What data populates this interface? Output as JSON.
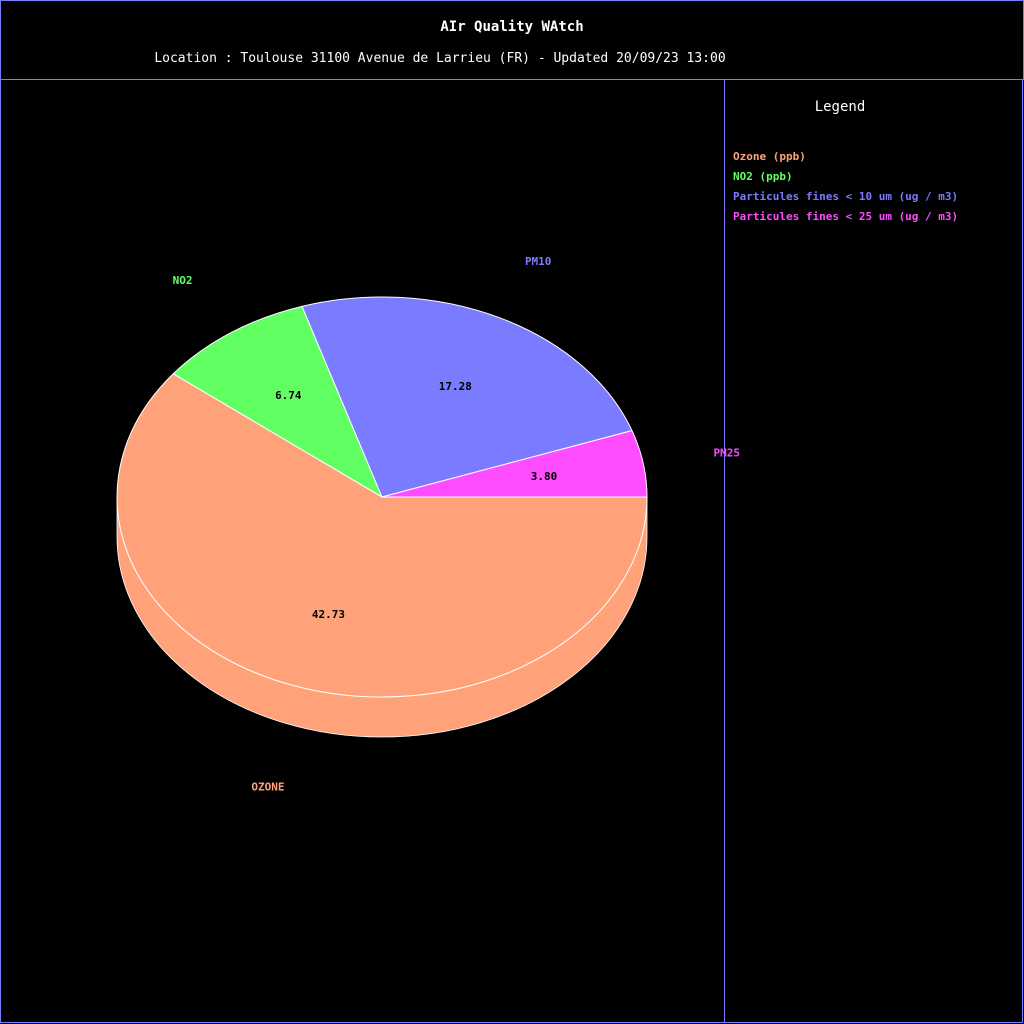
{
  "header": {
    "title": "AIr Quality WAtch",
    "subtitle": "Location : Toulouse 31100 Avenue de Larrieu (FR) - Updated 20/09/23 13:00"
  },
  "legend": {
    "title": "Legend",
    "items": [
      {
        "label": "Ozone (ppb)",
        "color": "#ffa27a"
      },
      {
        "label": "NO2 (ppb)",
        "color": "#62ff62"
      },
      {
        "label": "Particules fines < 10 um (ug / m3)",
        "color": "#7b7bff"
      },
      {
        "label": "Particules fines < 25 um (ug / m3)",
        "color": "#ff4cff"
      }
    ]
  },
  "chart_data": {
    "type": "pie",
    "style": "3d",
    "slices": [
      {
        "name": "OZONE",
        "value": 42.73,
        "value_label": "42.73",
        "color": "#ffa27a"
      },
      {
        "name": "NO2",
        "value": 6.74,
        "value_label": "6.74",
        "color": "#62ff62"
      },
      {
        "name": "PM10",
        "value": 17.28,
        "value_label": "17.28",
        "color": "#7b7bff"
      },
      {
        "name": "PM25",
        "value": 3.8,
        "value_label": "3.80",
        "color": "#ff4cff"
      }
    ],
    "legend_placement": "right"
  }
}
